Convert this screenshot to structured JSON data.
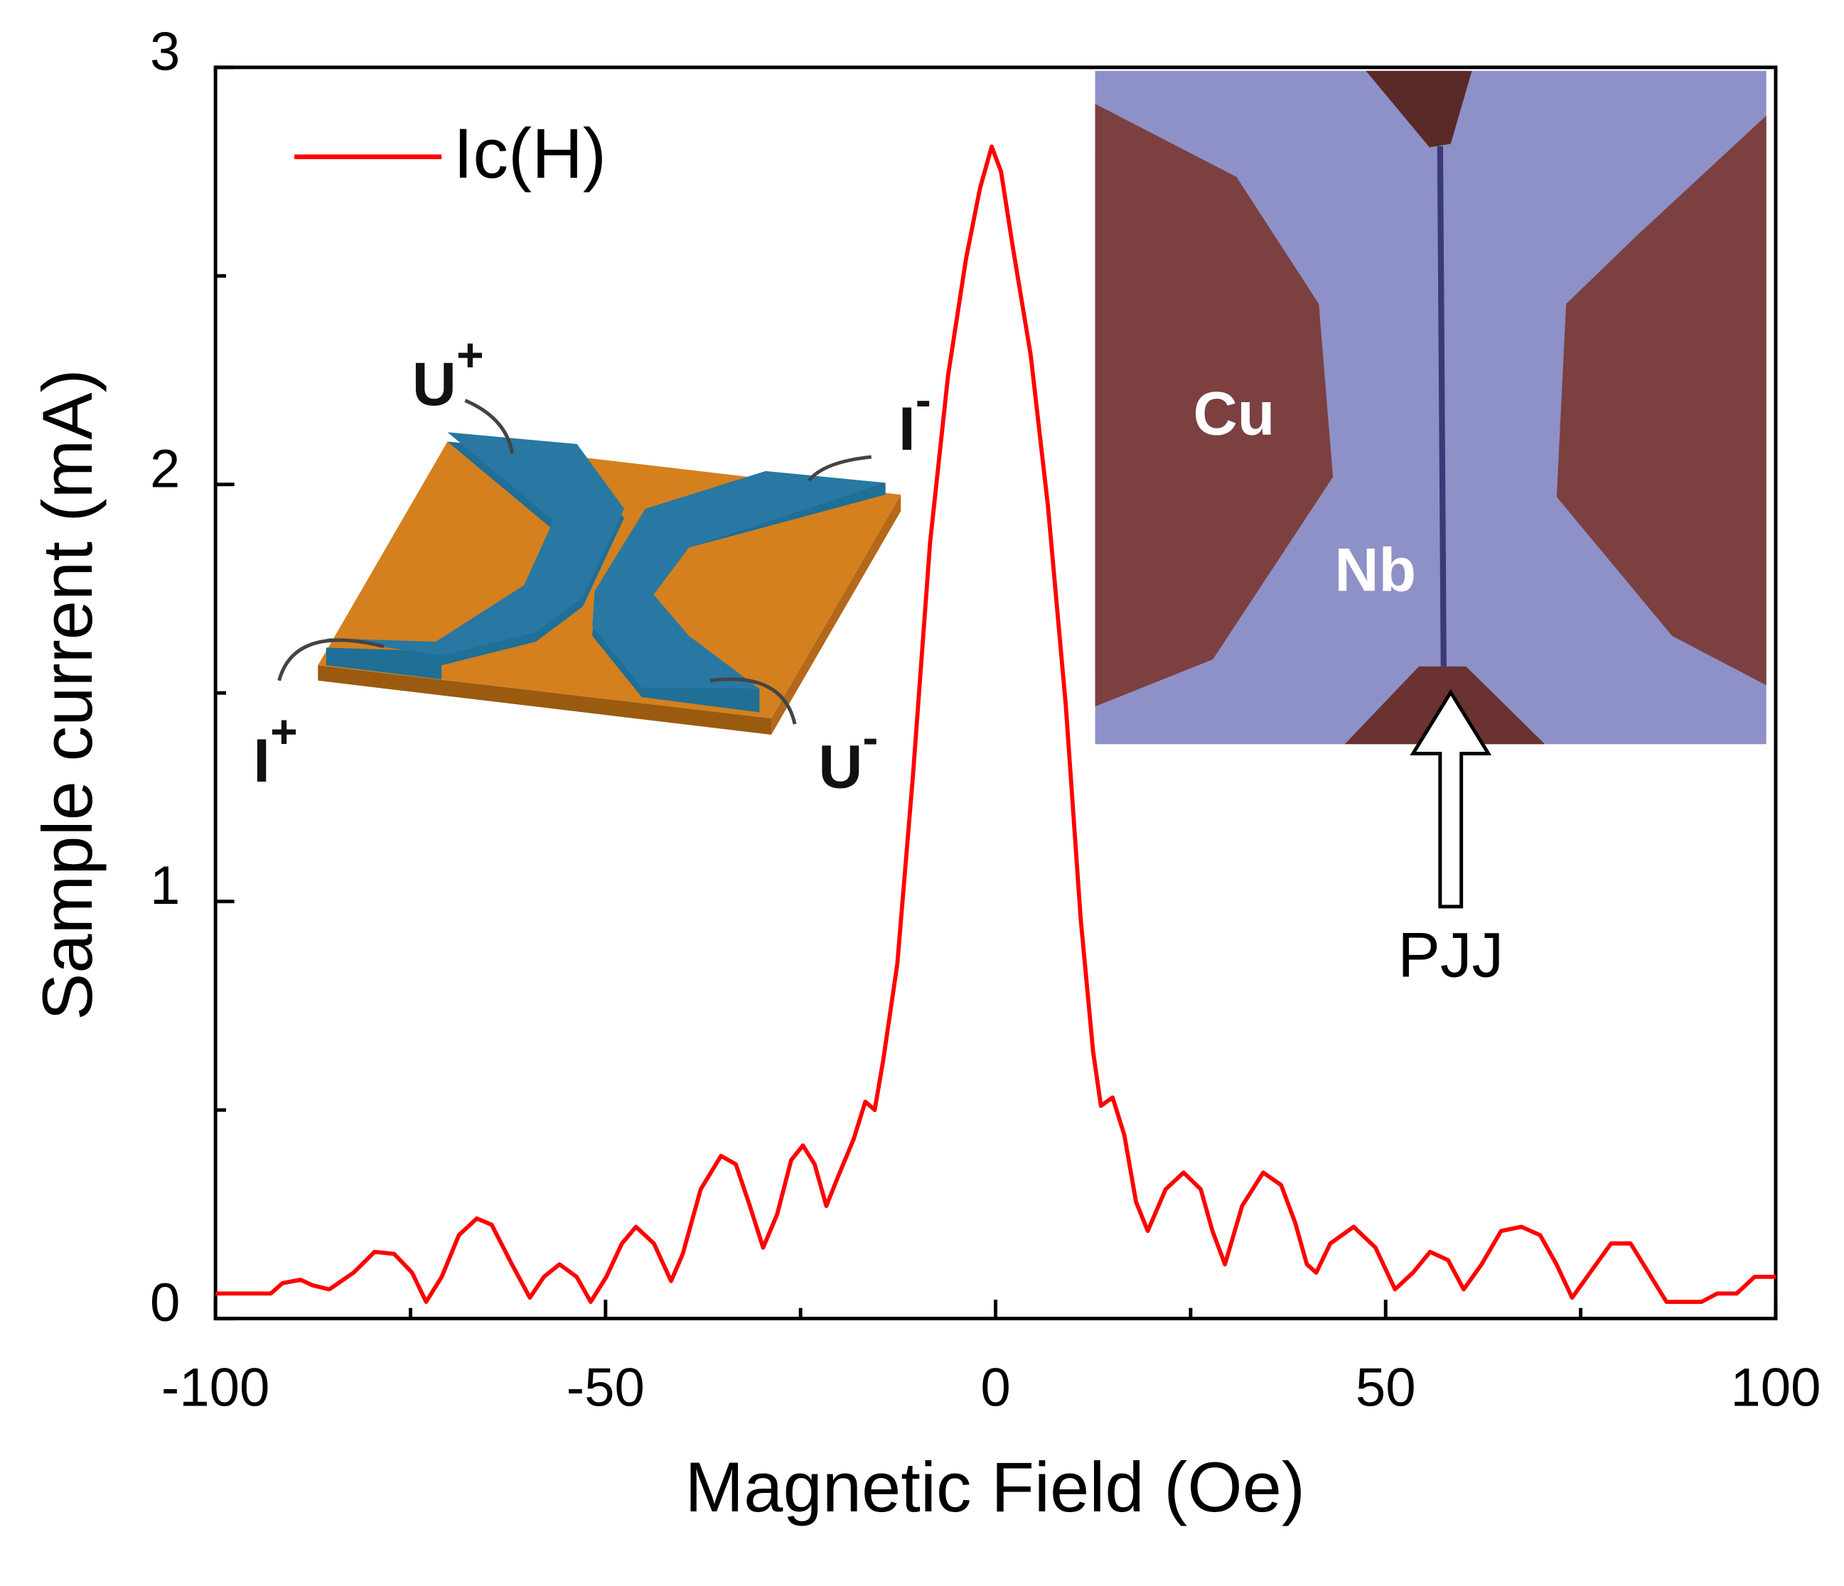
{
  "chart_data": {
    "type": "line",
    "xlabel": "Magnetic Field (Oe)",
    "ylabel": "Sample current (mA)",
    "xlim": [
      -100,
      100
    ],
    "ylim": [
      0,
      3
    ],
    "xticks": [
      -100,
      -50,
      0,
      50,
      100
    ],
    "xminorticks": [
      -75,
      -25,
      25,
      75
    ],
    "yticks": [
      0,
      1,
      2,
      3
    ],
    "yminorticks": [
      0.5,
      1.5,
      2.5
    ],
    "legend": "upper left",
    "series": [
      {
        "name": "Ic(H)",
        "color": "#ff0000",
        "x": [
          -100,
          -92.9,
          -91.4,
          -89.1,
          -87.6,
          -85.4,
          -82.3,
          -79.6,
          -77.1,
          -74.8,
          -73.0,
          -71.0,
          -68.8,
          -66.5,
          -64.6,
          -62.0,
          -59.7,
          -57.9,
          -55.9,
          -53.7,
          -51.9,
          -49.9,
          -47.9,
          -46.1,
          -43.8,
          -41.6,
          -40.1,
          -37.8,
          -35.2,
          -33.3,
          -31.5,
          -29.8,
          -28.0,
          -26.2,
          -24.7,
          -23.2,
          -21.7,
          -20.2,
          -18.2,
          -16.7,
          -15.5,
          -14.4,
          -12.6,
          -10.6,
          -8.4,
          -6.1,
          -3.8,
          -2.0,
          -0.5,
          0.7,
          2.2,
          4.5,
          6.7,
          9.0,
          10.9,
          12.5,
          13.5,
          15.0,
          16.5,
          18.0,
          19.5,
          21.8,
          24.1,
          26.3,
          27.8,
          29.4,
          31.6,
          34.3,
          36.6,
          38.4,
          39.9,
          41.1,
          42.9,
          45.9,
          48.7,
          51.2,
          53.5,
          55.7,
          58.0,
          60.0,
          62.3,
          64.8,
          67.4,
          69.8,
          71.9,
          73.9,
          76.2,
          78.9,
          81.4,
          83.7,
          86.0,
          90.5,
          92.5,
          95.0,
          97.3,
          100
        ],
        "values": [
          0.06,
          0.06,
          0.085,
          0.093,
          0.08,
          0.07,
          0.11,
          0.16,
          0.155,
          0.11,
          0.04,
          0.1,
          0.2,
          0.24,
          0.225,
          0.13,
          0.05,
          0.1,
          0.13,
          0.1,
          0.04,
          0.1,
          0.18,
          0.22,
          0.18,
          0.09,
          0.155,
          0.31,
          0.39,
          0.37,
          0.27,
          0.17,
          0.25,
          0.38,
          0.415,
          0.37,
          0.27,
          0.34,
          0.43,
          0.52,
          0.5,
          0.62,
          0.85,
          1.3,
          1.86,
          2.26,
          2.54,
          2.71,
          2.81,
          2.75,
          2.57,
          2.31,
          1.95,
          1.47,
          0.96,
          0.64,
          0.51,
          0.53,
          0.44,
          0.28,
          0.21,
          0.31,
          0.35,
          0.31,
          0.21,
          0.13,
          0.27,
          0.35,
          0.32,
          0.23,
          0.13,
          0.11,
          0.18,
          0.22,
          0.17,
          0.07,
          0.11,
          0.16,
          0.14,
          0.07,
          0.13,
          0.21,
          0.22,
          0.2,
          0.13,
          0.05,
          0.11,
          0.18,
          0.18,
          0.11,
          0.04,
          0.04,
          0.06,
          0.06,
          0.1,
          0.1
        ]
      }
    ],
    "annotations": [
      {
        "text": "U",
        "sup": "+"
      },
      {
        "text": "I",
        "sup": "-"
      },
      {
        "text": "I",
        "sup": "+"
      },
      {
        "text": "U",
        "sup": "-"
      },
      {
        "text": "Cu"
      },
      {
        "text": "Nb"
      },
      {
        "text": "PJJ"
      }
    ]
  }
}
